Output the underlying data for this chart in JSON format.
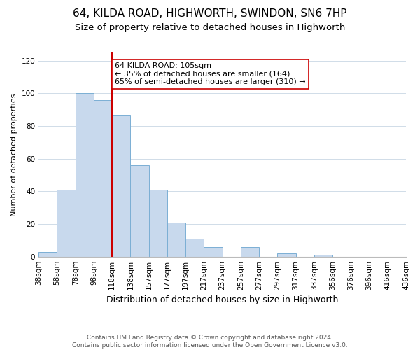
{
  "title": "64, KILDA ROAD, HIGHWORTH, SWINDON, SN6 7HP",
  "subtitle": "Size of property relative to detached houses in Highworth",
  "xlabel": "Distribution of detached houses by size in Highworth",
  "ylabel": "Number of detached properties",
  "bin_labels": [
    "38sqm",
    "58sqm",
    "78sqm",
    "98sqm",
    "118sqm",
    "138sqm",
    "157sqm",
    "177sqm",
    "197sqm",
    "217sqm",
    "237sqm",
    "257sqm",
    "277sqm",
    "297sqm",
    "317sqm",
    "337sqm",
    "356sqm",
    "376sqm",
    "396sqm",
    "416sqm",
    "436sqm"
  ],
  "bar_values": [
    3,
    41,
    100,
    96,
    87,
    56,
    41,
    21,
    11,
    6,
    0,
    6,
    0,
    2,
    0,
    1,
    0,
    0,
    0,
    0
  ],
  "bar_color": "#c8d9ed",
  "bar_edge_color": "#7bafd4",
  "vline_x_index": 3,
  "vline_color": "#cc0000",
  "annotation_text": "64 KILDA ROAD: 105sqm\n← 35% of detached houses are smaller (164)\n65% of semi-detached houses are larger (310) →",
  "annotation_box_color": "#ffffff",
  "annotation_box_edge": "#cc0000",
  "ylim": [
    0,
    125
  ],
  "yticks": [
    0,
    20,
    40,
    60,
    80,
    100,
    120
  ],
  "footer_text": "Contains HM Land Registry data © Crown copyright and database right 2024.\nContains public sector information licensed under the Open Government Licence v3.0.",
  "bg_color": "#ffffff",
  "grid_color": "#d0dce8",
  "title_fontsize": 11,
  "subtitle_fontsize": 9.5,
  "xlabel_fontsize": 9,
  "ylabel_fontsize": 8,
  "tick_fontsize": 7.5,
  "footer_fontsize": 6.5
}
